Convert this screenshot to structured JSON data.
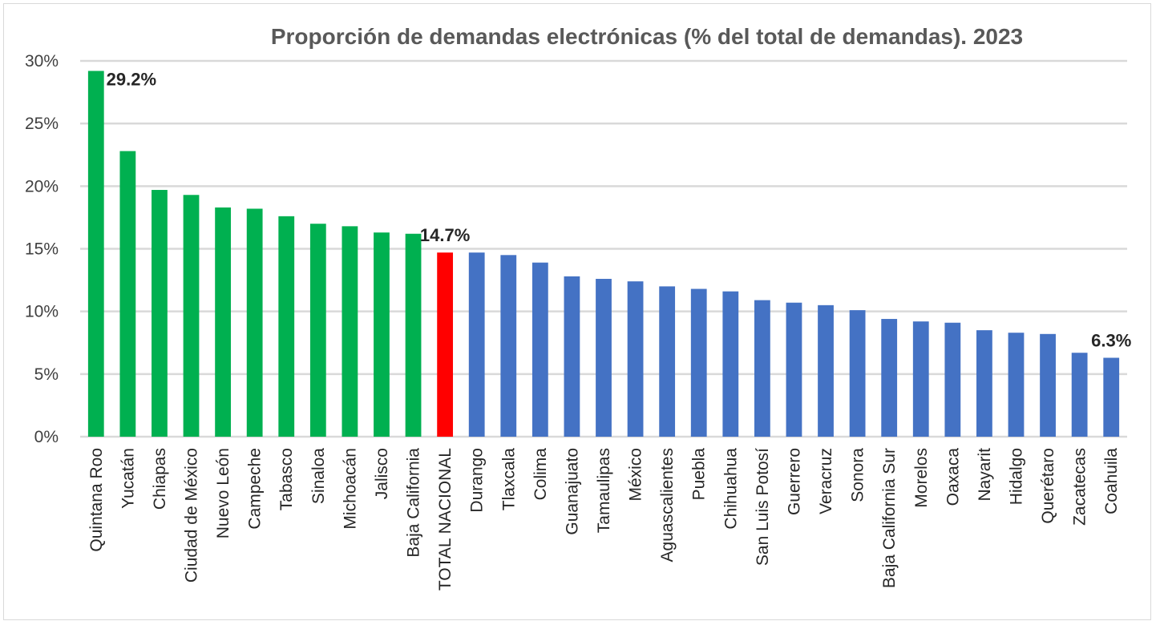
{
  "chart_data": {
    "type": "bar",
    "title": "Proporción de demandas electrónicas (% del total de demandas). 2023",
    "xlabel": "",
    "ylabel": "",
    "ylim": [
      0,
      30
    ],
    "yticks": [
      0,
      5,
      10,
      15,
      20,
      25,
      30
    ],
    "ytick_labels": [
      "0%",
      "5%",
      "10%",
      "15%",
      "20%",
      "25%",
      "30%"
    ],
    "grid": true,
    "categories": [
      "Quintana Roo",
      "Yucatán",
      "Chiapas",
      "Ciudad de México",
      "Nuevo León",
      "Campeche",
      "Tabasco",
      "Sinaloa",
      "Michoacán",
      "Jalisco",
      "Baja California",
      "TOTAL NACIONAL",
      "Durango",
      "Tlaxcala",
      "Colima",
      "Guanajuato",
      "Tamaulipas",
      "México",
      "Aguascalientes",
      "Puebla",
      "Chihuahua",
      "San Luis Potosí",
      "Guerrero",
      "Veracruz",
      "Sonora",
      "Baja California Sur",
      "Morelos",
      "Oaxaca",
      "Nayarit",
      "Hidalgo",
      "Querétaro",
      "Zacatecas",
      "Coahuila"
    ],
    "values": [
      29.2,
      22.8,
      19.7,
      19.3,
      18.3,
      18.2,
      17.6,
      17.0,
      16.8,
      16.3,
      16.2,
      14.7,
      14.7,
      14.5,
      13.9,
      12.8,
      12.6,
      12.4,
      12.0,
      11.8,
      11.6,
      10.9,
      10.7,
      10.5,
      10.1,
      9.4,
      9.2,
      9.1,
      8.5,
      8.3,
      8.2,
      6.7,
      6.3
    ],
    "bar_colors": [
      "#00b050",
      "#00b050",
      "#00b050",
      "#00b050",
      "#00b050",
      "#00b050",
      "#00b050",
      "#00b050",
      "#00b050",
      "#00b050",
      "#00b050",
      "#ff0000",
      "#4472c4",
      "#4472c4",
      "#4472c4",
      "#4472c4",
      "#4472c4",
      "#4472c4",
      "#4472c4",
      "#4472c4",
      "#4472c4",
      "#4472c4",
      "#4472c4",
      "#4472c4",
      "#4472c4",
      "#4472c4",
      "#4472c4",
      "#4472c4",
      "#4472c4",
      "#4472c4",
      "#4472c4",
      "#4472c4",
      "#4472c4"
    ],
    "data_labels": [
      {
        "index": 0,
        "text": "29.2%"
      },
      {
        "index": 11,
        "text": "14.7%"
      },
      {
        "index": 32,
        "text": "6.3%"
      }
    ],
    "colors": {
      "above_national": "#00b050",
      "national": "#ff0000",
      "below_national": "#4472c4",
      "grid": "#d9d9d9"
    }
  }
}
